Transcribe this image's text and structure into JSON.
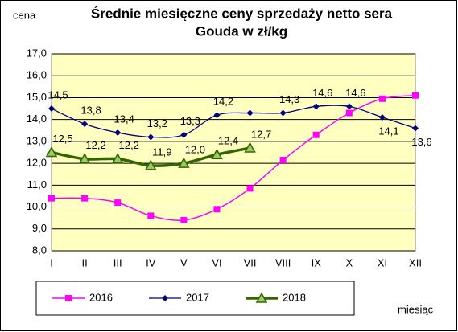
{
  "chart_data": {
    "type": "line",
    "title": [
      "Średnie miesięczne ceny sprzedaży netto sera",
      "Gouda w zł/kg"
    ],
    "y_label": "cena",
    "x_label": "miesiąc",
    "categories": [
      "I",
      "II",
      "III",
      "IV",
      "V",
      "VI",
      "VII",
      "VIII",
      "IX",
      "X",
      "XI",
      "XII"
    ],
    "series": [
      {
        "name": "2016",
        "color": "#ff00ff",
        "marker": "square",
        "values": [
          10.4,
          10.4,
          10.2,
          9.6,
          9.4,
          9.9,
          10.85,
          12.15,
          13.3,
          14.3,
          14.95,
          15.1
        ]
      },
      {
        "name": "2017",
        "color": "#000080",
        "marker": "diamond",
        "values": [
          14.5,
          13.8,
          13.4,
          13.2,
          13.3,
          14.2,
          14.3,
          14.3,
          14.6,
          14.6,
          14.1,
          13.6
        ],
        "value_labels": [
          "14,5",
          "13,8",
          "13,4",
          "13,2",
          "13,3",
          "14,2",
          null,
          "14,3",
          "14,6",
          "14,6",
          "14,1",
          "13,6"
        ]
      },
      {
        "name": "2018",
        "color": "#336600",
        "marker": "triangle",
        "values": [
          12.5,
          12.2,
          12.2,
          11.9,
          12.0,
          12.4,
          12.7,
          null,
          null,
          null,
          null,
          null
        ],
        "value_labels": [
          "12,5",
          "12,2",
          "12,2",
          "11,9",
          "12,0",
          "12,4",
          "12,7",
          null,
          null,
          null,
          null,
          null
        ]
      }
    ],
    "ylim": [
      8,
      17
    ],
    "yticks": [
      {
        "value": 8,
        "label": "8,0"
      },
      {
        "value": 9,
        "label": "9,0"
      },
      {
        "value": 10,
        "label": "10,0"
      },
      {
        "value": 11,
        "label": "11,0"
      },
      {
        "value": 12,
        "label": "12,0"
      },
      {
        "value": 13,
        "label": "13,0"
      },
      {
        "value": 14,
        "label": "14,0"
      },
      {
        "value": 15,
        "label": "15,0"
      },
      {
        "value": 16,
        "label": "16,0"
      },
      {
        "value": 17,
        "label": "17,0"
      }
    ],
    "grid": true,
    "legend": "bottom"
  }
}
